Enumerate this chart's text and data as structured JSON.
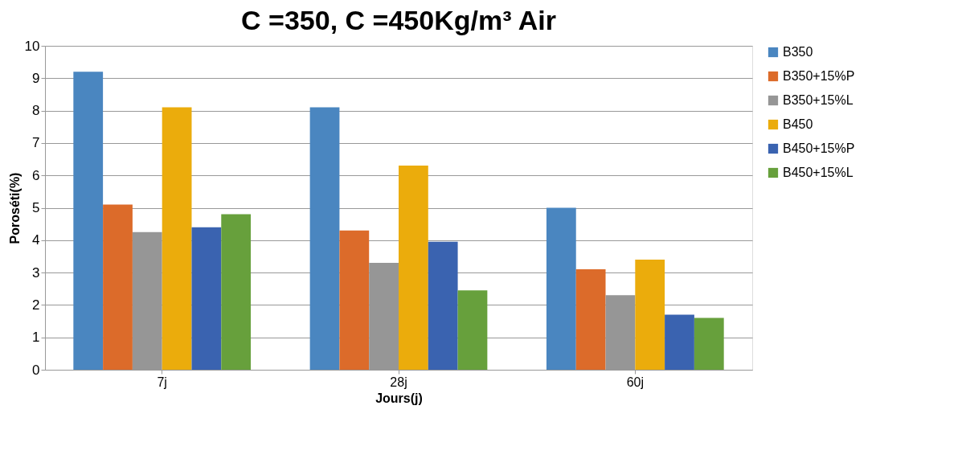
{
  "chart_data": {
    "type": "bar",
    "title": "C =350, C =450Kg/m³  Air",
    "xlabel": "Jours(j)",
    "ylabel": "Poroséti(%)",
    "categories": [
      "7j",
      "28j",
      "60j"
    ],
    "series": [
      {
        "name": "B350",
        "color": "#4a86c0",
        "values": [
          9.2,
          8.1,
          5.0
        ]
      },
      {
        "name": "B350+15%P",
        "color": "#dc6b2a",
        "values": [
          5.1,
          4.3,
          3.1
        ]
      },
      {
        "name": "B350+15%L",
        "color": "#969696",
        "values": [
          4.25,
          3.3,
          2.3
        ]
      },
      {
        "name": "B450",
        "color": "#ebac0c",
        "values": [
          8.1,
          6.3,
          3.4
        ]
      },
      {
        "name": "B450+15%P",
        "color": "#3a63b0",
        "values": [
          4.4,
          3.95,
          1.7
        ]
      },
      {
        "name": "B450+15%L",
        "color": "#67a03c",
        "values": [
          4.8,
          2.45,
          1.6
        ]
      }
    ],
    "ylim": [
      0,
      10
    ],
    "yticks": [
      0,
      1,
      2,
      3,
      4,
      5,
      6,
      7,
      8,
      9,
      10
    ],
    "grid": "y",
    "legend": "right"
  }
}
